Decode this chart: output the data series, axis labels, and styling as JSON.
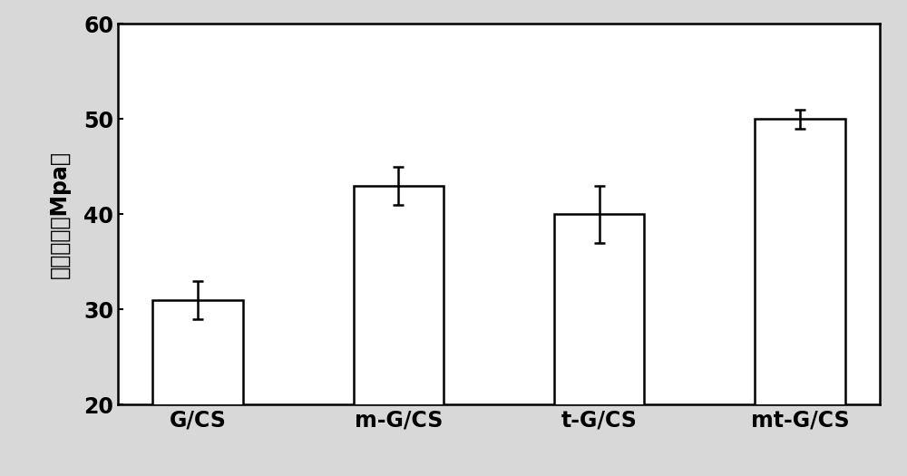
{
  "categories": [
    "G/CS",
    "m-G/CS",
    "t-G/CS",
    "mt-G/CS"
  ],
  "values": [
    31.0,
    43.0,
    40.0,
    50.0
  ],
  "errors": [
    2.0,
    2.0,
    3.0,
    1.0
  ],
  "bar_color": "#ffffff",
  "bar_edgecolor": "#000000",
  "bar_linewidth": 1.8,
  "bar_width": 0.45,
  "ylim": [
    20,
    60
  ],
  "yticks": [
    20,
    30,
    40,
    50,
    60
  ],
  "ylabel": "拉伸强度（Mpa）",
  "ylabel_fontsize": 17,
  "tick_fontsize": 17,
  "xtick_fontsize": 17,
  "background_color": "#d8d8d8",
  "plot_bg_color": "#ffffff",
  "capsize": 4,
  "error_linewidth": 1.8,
  "error_capthick": 1.8,
  "spine_linewidth": 1.8
}
